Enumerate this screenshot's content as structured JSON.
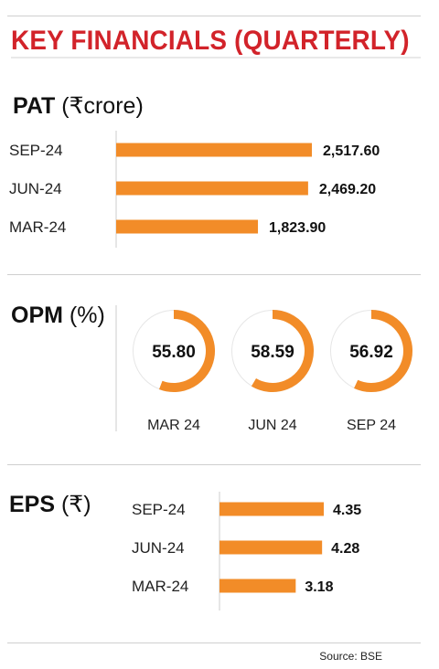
{
  "title": "KEY FINANCIALS (QUARTERLY)",
  "colors": {
    "title": "#d2232a",
    "bar": "#f28c28",
    "ring_track": "#e6e6e6",
    "axis": "#cccccc"
  },
  "sections": {
    "pat": {
      "name": "PAT",
      "unit": "(₹crore)"
    },
    "opm": {
      "name": "OPM",
      "unit": "(%)"
    },
    "eps": {
      "name": "EPS",
      "unit": "(₹)"
    }
  },
  "source": "Source: BSE",
  "chart_data": [
    {
      "id": "pat",
      "type": "bar",
      "orientation": "horizontal",
      "title": "PAT (₹crore)",
      "categories": [
        "SEP-24",
        "JUN-24",
        "MAR-24"
      ],
      "values": [
        2517.6,
        2469.2,
        1823.9
      ],
      "labels": [
        "2,517.60",
        "2,469.20",
        "1,823.90"
      ],
      "xlim": [
        0,
        2517.6
      ]
    },
    {
      "id": "opm",
      "type": "pie",
      "subtype": "donut-progress",
      "title": "OPM (%)",
      "categories": [
        "MAR 24",
        "JUN 24",
        "SEP 24"
      ],
      "values": [
        55.8,
        58.59,
        56.92
      ],
      "labels": [
        "55.80",
        "58.59",
        "56.92"
      ],
      "max": 100
    },
    {
      "id": "eps",
      "type": "bar",
      "orientation": "horizontal",
      "title": "EPS (₹)",
      "categories": [
        "SEP-24",
        "JUN-24",
        "MAR-24"
      ],
      "values": [
        4.35,
        4.28,
        3.18
      ],
      "labels": [
        "4.35",
        "4.28",
        "3.18"
      ],
      "xlim": [
        0,
        4.35
      ]
    }
  ]
}
